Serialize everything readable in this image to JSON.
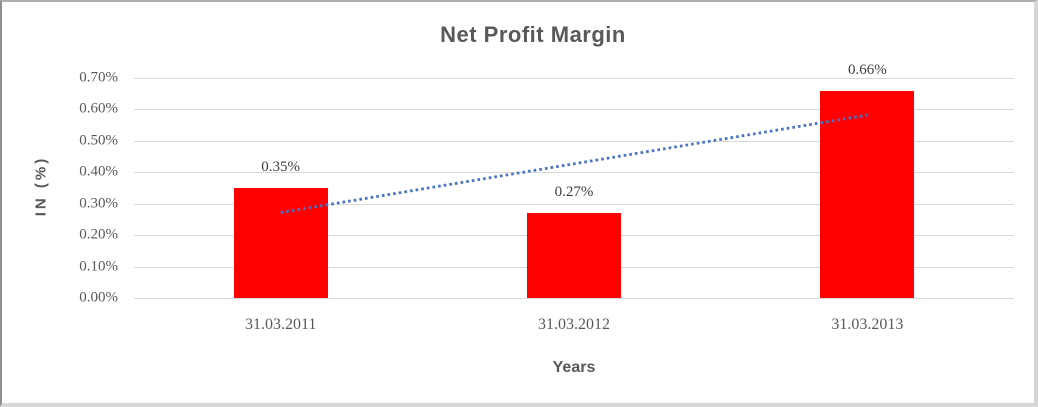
{
  "chart_data": {
    "type": "bar",
    "title": "Net Profit Margin",
    "xlabel": "Years",
    "ylabel": "IN (%)",
    "categories": [
      "31.03.2011",
      "31.03.2012",
      "31.03.2013"
    ],
    "values": [
      0.35,
      0.27,
      0.66
    ],
    "data_labels": [
      "0.35%",
      "0.27%",
      "0.66%"
    ],
    "yticks": [
      "0.70%",
      "0.60%",
      "0.50%",
      "0.40%",
      "0.30%",
      "0.20%",
      "0.10%",
      "0.00%"
    ],
    "ylim": [
      0,
      0.7
    ],
    "ytick_step": 0.1,
    "grid": "horizontal",
    "legend": "none",
    "colors": {
      "bar": "#ff0000",
      "trendline": "#4472c4",
      "gridline": "#d9d9d9",
      "title_text": "#595959",
      "axis_text": "#595959",
      "data_label_text": "#404040"
    },
    "trendline": {
      "type": "linear",
      "style": "dotted",
      "color": "#4472c4",
      "from_category_index": 0,
      "to_category_index": 2,
      "from_value": 0.272,
      "to_value": 0.582
    }
  }
}
